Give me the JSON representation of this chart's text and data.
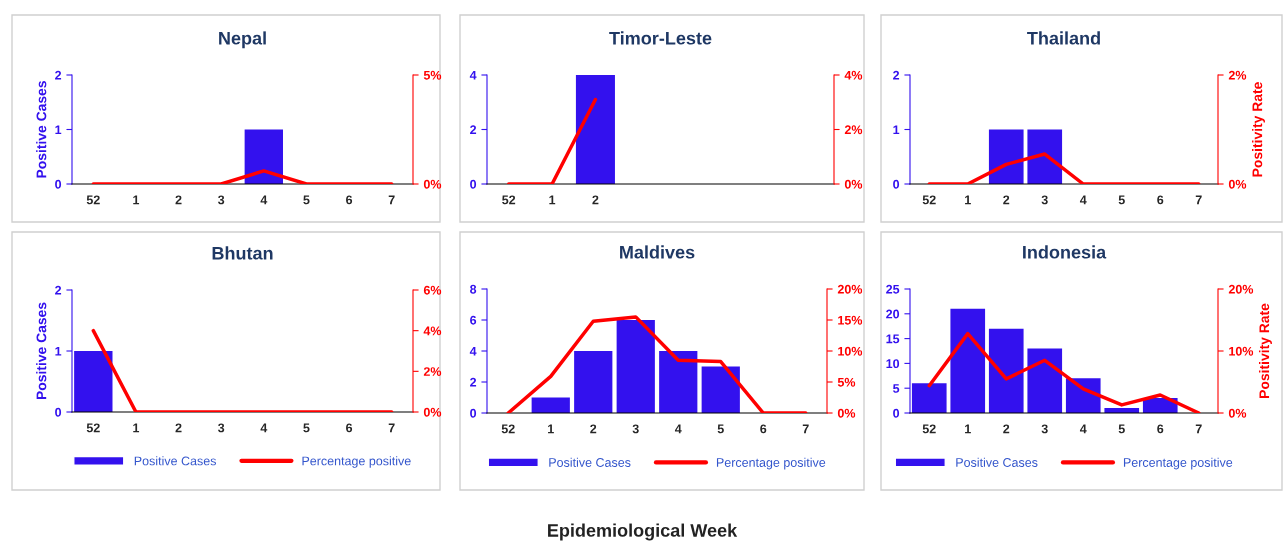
{
  "chart_data": [
    {
      "type": "bar",
      "title": "Nepal",
      "ylabel": "Positive Cases",
      "categories": [
        "52",
        "1",
        "2",
        "3",
        "4",
        "5",
        "6",
        "7"
      ],
      "ylim": [
        0,
        2
      ],
      "yticks": [
        0,
        1,
        2
      ],
      "y2lim": [
        0,
        5
      ],
      "y2ticks": [
        {
          "value": 0,
          "label": "0%"
        },
        {
          "value": 5,
          "label": "5%"
        }
      ],
      "legend": false,
      "series": [
        {
          "color": "#3311ee",
          "values": [
            0,
            0,
            0,
            0,
            1,
            0,
            0,
            0
          ]
        },
        {
          "type": "line",
          "axis": "y2",
          "color": "#ff0000",
          "values": [
            0,
            0,
            0,
            0,
            0.6,
            0,
            0,
            0
          ]
        }
      ]
    },
    {
      "type": "bar",
      "title": "Timor-Leste",
      "categories": [
        "52",
        "1",
        "2",
        null,
        null,
        null,
        null,
        null
      ],
      "ylim": [
        0,
        4
      ],
      "yticks": [
        0,
        2,
        4
      ],
      "y2lim": [
        0,
        4
      ],
      "y2ticks": [
        {
          "value": 0,
          "label": "0%"
        },
        {
          "value": 2,
          "label": "2%"
        },
        {
          "value": 4,
          "label": "4%"
        }
      ],
      "legend": false,
      "series": [
        {
          "color": "#3311ee",
          "values": [
            0,
            0,
            4,
            null,
            null,
            null,
            null,
            null
          ]
        },
        {
          "type": "line",
          "axis": "y2",
          "color": "#ff0000",
          "values": [
            0,
            0,
            3.1,
            null,
            null,
            null,
            null,
            null
          ]
        }
      ]
    },
    {
      "type": "bar",
      "title": "Thailand",
      "y2label": "Positivity Rate",
      "categories": [
        "52",
        "1",
        "2",
        "3",
        "4",
        "5",
        "6",
        "7"
      ],
      "ylim": [
        0,
        2
      ],
      "yticks": [
        0,
        1,
        2
      ],
      "y2lim": [
        0,
        2
      ],
      "y2ticks": [
        {
          "value": 0,
          "label": "0%"
        },
        {
          "value": 2,
          "label": "2%"
        }
      ],
      "legend": false,
      "series": [
        {
          "color": "#3311ee",
          "values": [
            0,
            0,
            1,
            1,
            0,
            0,
            0,
            0
          ]
        },
        {
          "type": "line",
          "axis": "y2",
          "color": "#ff0000",
          "values": [
            0,
            0,
            0.36,
            0.55,
            0,
            0,
            0,
            0
          ]
        }
      ]
    },
    {
      "type": "bar",
      "title": "Bhutan",
      "ylabel": "Positive Cases",
      "categories": [
        "52",
        "1",
        "2",
        "3",
        "4",
        "5",
        "6",
        "7"
      ],
      "ylim": [
        0,
        2
      ],
      "yticks": [
        0,
        1,
        2
      ],
      "y2lim": [
        0,
        6
      ],
      "y2ticks": [
        {
          "value": 0,
          "label": "0%"
        },
        {
          "value": 2,
          "label": "2%"
        },
        {
          "value": 4,
          "label": "4%"
        },
        {
          "value": 6,
          "label": "6%"
        }
      ],
      "legend": "bottom",
      "series": [
        {
          "name": "Positive Cases",
          "color": "#3311ee",
          "values": [
            1,
            0,
            0,
            0,
            0,
            0,
            0,
            0
          ]
        },
        {
          "type": "line",
          "axis": "y2",
          "name": "Percentage positive",
          "color": "#ff0000",
          "values": [
            4,
            0,
            0,
            0,
            0,
            0,
            0,
            0
          ]
        }
      ]
    },
    {
      "type": "bar",
      "title": "Maldives",
      "categories": [
        "52",
        "1",
        "2",
        "3",
        "4",
        "5",
        "6",
        "7"
      ],
      "ylim": [
        0,
        8
      ],
      "yticks": [
        0,
        2,
        4,
        6,
        8
      ],
      "y2lim": [
        0,
        20
      ],
      "y2ticks": [
        {
          "value": 0,
          "label": "0%"
        },
        {
          "value": 5,
          "label": "5%"
        },
        {
          "value": 10,
          "label": "10%"
        },
        {
          "value": 15,
          "label": "15%"
        },
        {
          "value": 20,
          "label": "20%"
        }
      ],
      "legend": "bottom",
      "annotations": [
        "Epidemiological Week"
      ],
      "series": [
        {
          "name": "Positive Cases",
          "color": "#3311ee",
          "values": [
            0,
            1,
            4,
            6,
            4,
            3,
            0,
            0
          ]
        },
        {
          "type": "line",
          "axis": "y2",
          "name": "Percentage positive",
          "color": "#ff0000",
          "values": [
            0,
            5.9,
            14.8,
            15.5,
            8.5,
            8.3,
            0,
            0
          ]
        }
      ]
    },
    {
      "type": "bar",
      "title": "Indonesia",
      "y2label": "Positivity Rate",
      "categories": [
        "52",
        "1",
        "2",
        "3",
        "4",
        "5",
        "6",
        "7"
      ],
      "ylim": [
        0,
        25
      ],
      "yticks": [
        0,
        5,
        10,
        15,
        20,
        25
      ],
      "y2lim": [
        0,
        20
      ],
      "y2ticks": [
        {
          "value": 0,
          "label": "0%"
        },
        {
          "value": 10,
          "label": "10%"
        },
        {
          "value": 20,
          "label": "20%"
        }
      ],
      "legend": "bottom",
      "series": [
        {
          "name": "Positive Cases",
          "color": "#3311ee",
          "values": [
            6,
            21,
            17,
            13,
            7,
            1,
            3,
            0
          ]
        },
        {
          "type": "line",
          "axis": "y2",
          "name": "Percentage positive",
          "color": "#ff0000",
          "values": [
            4.4,
            12.8,
            5.5,
            8.5,
            3.9,
            1.3,
            2.9,
            0
          ]
        }
      ]
    }
  ]
}
